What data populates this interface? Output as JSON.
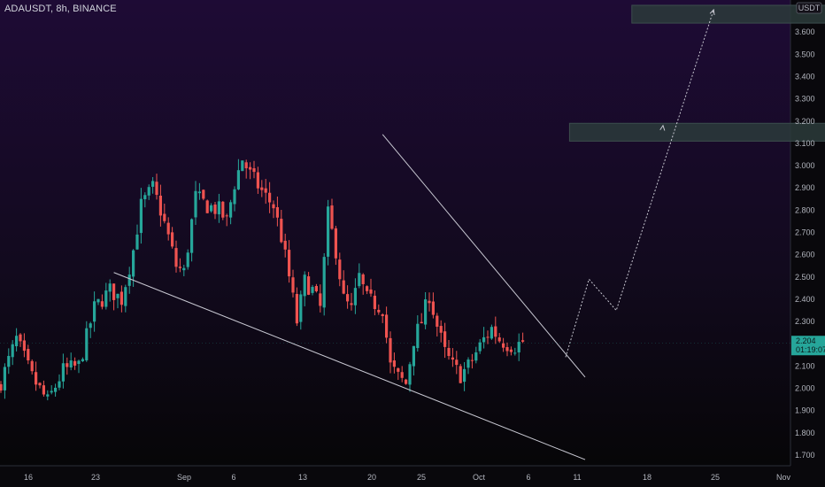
{
  "header": {
    "symbol_label": "ADAUSDT, 8h, BINANCE"
  },
  "price_axis": {
    "currency_badge": "USDT"
  },
  "last_price": {
    "value": 2.204,
    "label": "2.204",
    "countdown": "01:19:07"
  },
  "colors": {
    "bull": "#26a69a",
    "bear": "#ef5350",
    "pattern_lines": "#c8c8d2",
    "target_box": "#2c3b3b",
    "projection": "#c8c8d2",
    "background_top": "#1e0b35",
    "background_bottom": "#050505"
  },
  "chart_data": {
    "type": "candlestick",
    "timeframe": "8h",
    "xlabel": "",
    "ylabel": "",
    "x_ticks": [
      "16",
      "23",
      "Sep",
      "6",
      "13",
      "20",
      "25",
      "Oct",
      "6",
      "11",
      "18",
      "25",
      "Nov"
    ],
    "y_ticks": [
      "1.700",
      "1.800",
      "1.900",
      "2.000",
      "2.100",
      "2.200",
      "2.300",
      "2.400",
      "2.500",
      "2.600",
      "2.700",
      "2.800",
      "2.900",
      "3.000",
      "3.100",
      "3.200",
      "3.300",
      "3.400",
      "3.500",
      "3.600"
    ],
    "ylim": [
      1.66,
      3.74
    ],
    "close_path": [
      [
        0,
        2.03
      ],
      [
        4,
        2.22
      ],
      [
        8,
        2.05
      ],
      [
        12,
        1.94
      ],
      [
        16,
        2.08
      ],
      [
        20,
        2.1
      ],
      [
        24,
        2.36
      ],
      [
        28,
        2.44
      ],
      [
        31,
        2.4
      ],
      [
        34,
        2.62
      ],
      [
        36,
        2.82
      ],
      [
        39,
        2.9
      ],
      [
        41,
        2.8
      ],
      [
        43,
        2.68
      ],
      [
        45,
        2.55
      ],
      [
        47,
        2.52
      ],
      [
        50,
        2.86
      ],
      [
        53,
        2.82
      ],
      [
        56,
        2.8
      ],
      [
        58,
        2.75
      ],
      [
        60,
        2.92
      ],
      [
        62,
        3.03
      ],
      [
        64,
        2.96
      ],
      [
        66,
        2.91
      ],
      [
        68,
        2.86
      ],
      [
        70,
        2.82
      ],
      [
        72,
        2.68
      ],
      [
        74,
        2.5
      ],
      [
        76,
        2.3
      ],
      [
        78,
        2.48
      ],
      [
        80,
        2.44
      ],
      [
        82,
        2.36
      ],
      [
        84,
        2.78
      ],
      [
        86,
        2.62
      ],
      [
        88,
        2.4
      ],
      [
        90,
        2.35
      ],
      [
        92,
        2.5
      ],
      [
        94,
        2.4
      ],
      [
        96,
        2.38
      ],
      [
        98,
        2.36
      ],
      [
        100,
        2.1
      ],
      [
        102,
        2.05
      ],
      [
        104,
        2.02
      ],
      [
        106,
        2.22
      ],
      [
        108,
        2.3
      ],
      [
        110,
        2.42
      ],
      [
        112,
        2.28
      ],
      [
        114,
        2.16
      ],
      [
        116,
        2.1
      ],
      [
        118,
        2.06
      ],
      [
        120,
        2.1
      ],
      [
        122,
        2.16
      ],
      [
        124,
        2.22
      ],
      [
        126,
        2.27
      ],
      [
        128,
        2.22
      ],
      [
        130,
        2.2
      ],
      [
        132,
        2.19
      ],
      [
        134,
        2.21
      ]
    ],
    "series": [
      {
        "name": "",
        "kind": "ohlc",
        "source": "close_path"
      }
    ],
    "drawings": {
      "wedge_upper": {
        "start": [
          98,
          3.14
        ],
        "end": [
          150,
          2.05
        ]
      },
      "wedge_lower": {
        "start": [
          29,
          2.52
        ],
        "end": [
          150,
          1.68
        ]
      },
      "projection_path": [
        [
          145,
          2.14
        ],
        [
          151,
          2.49
        ],
        [
          158,
          2.35
        ],
        [
          183,
          3.7
        ]
      ],
      "projection_arrow_mid": [
        [
          167,
          2.8
        ],
        [
          170,
          3.18
        ]
      ],
      "target_zones": [
        {
          "x_from": 146,
          "x_to": 215,
          "y_low": 3.11,
          "y_high": 3.19
        },
        {
          "x_from": 162,
          "x_to": 215,
          "y_low": 3.64,
          "y_high": 3.72
        }
      ]
    }
  }
}
